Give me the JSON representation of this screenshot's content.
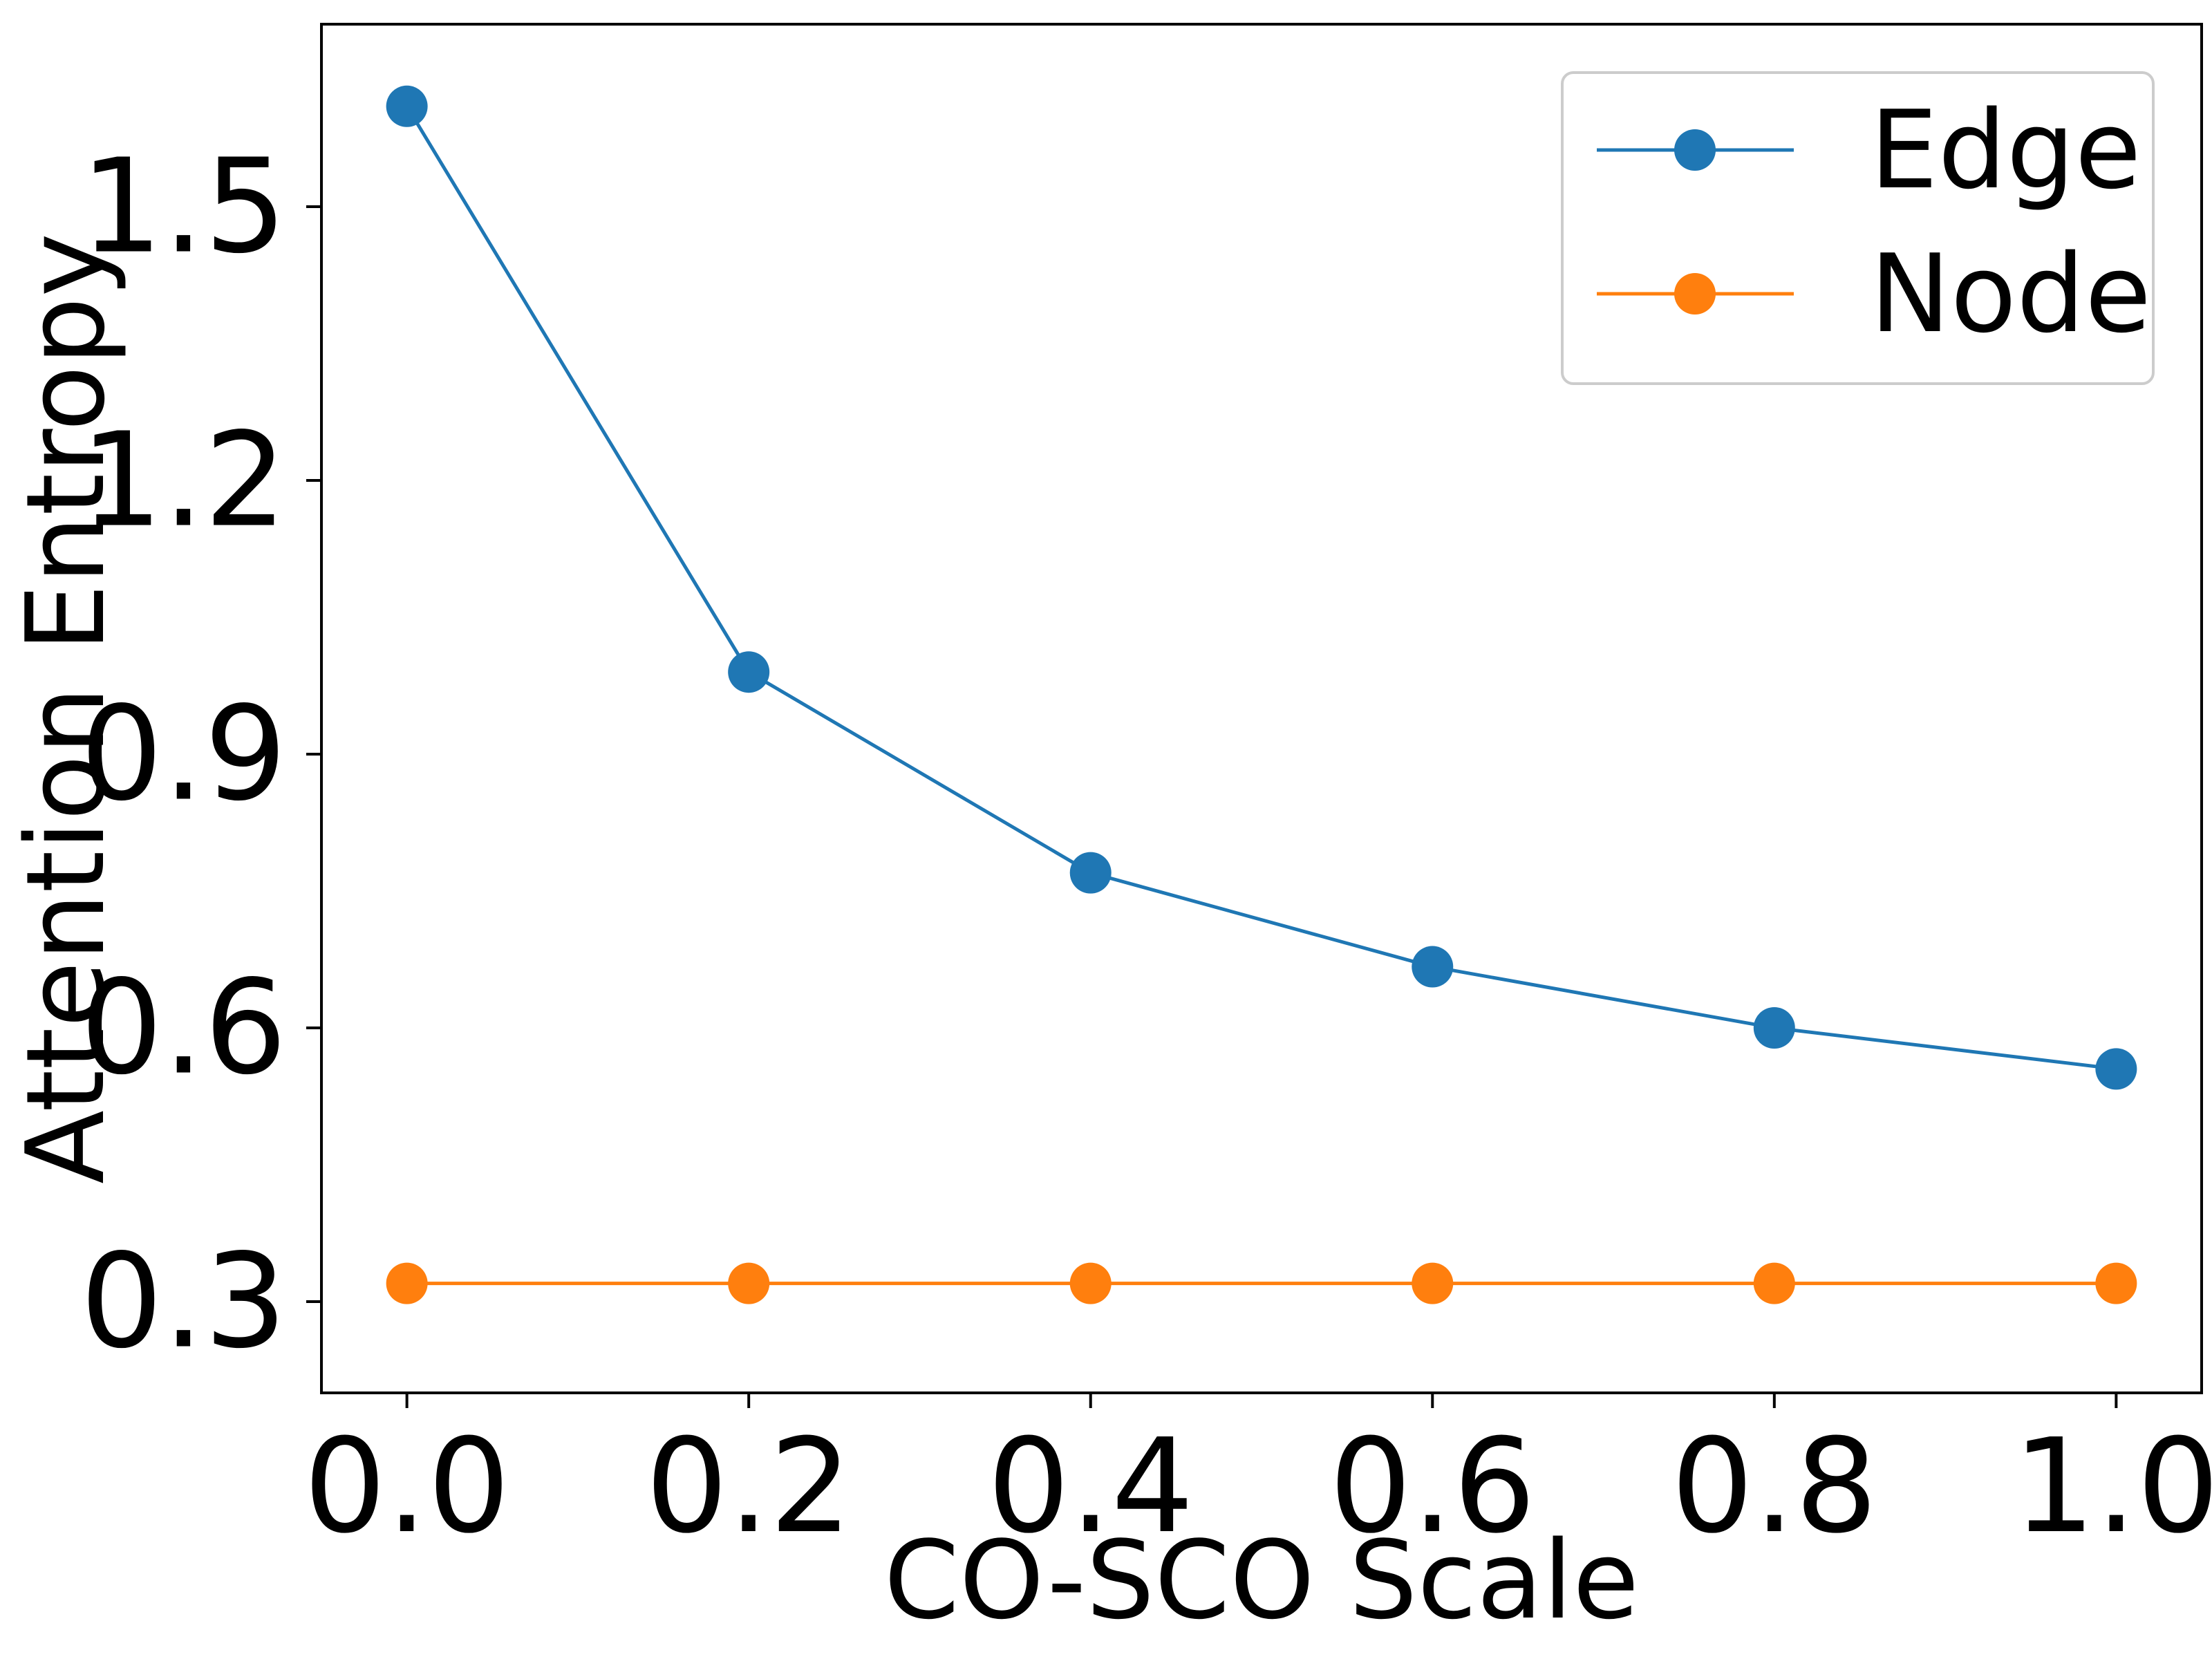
{
  "chart_data": {
    "type": "line",
    "title": "",
    "xlabel": "CO-SCO Scale",
    "ylabel": "Attention Entropy",
    "x": [
      0.0,
      0.2,
      0.4,
      0.6,
      0.8,
      1.0
    ],
    "x_ticks": [
      "0.0",
      "0.2",
      "0.4",
      "0.6",
      "0.8",
      "1.0"
    ],
    "y_ticks": [
      {
        "value": 0.3,
        "label": "0.3"
      },
      {
        "value": 0.6,
        "label": "0.6"
      },
      {
        "value": 0.9,
        "label": "0.9"
      },
      {
        "value": 1.2,
        "label": "1.2"
      },
      {
        "value": 1.5,
        "label": "1.5"
      }
    ],
    "xlim": [
      -0.05,
      1.05
    ],
    "ylim": [
      0.2,
      1.7
    ],
    "grid": false,
    "legend_position": "top-right",
    "series": [
      {
        "name": "Edge",
        "color": "#1f77b4",
        "values": [
          1.61,
          0.99,
          0.77,
          0.667,
          0.6,
          0.555
        ]
      },
      {
        "name": "Node",
        "color": "#ff7f0e",
        "values": [
          0.32,
          0.32,
          0.32,
          0.32,
          0.32,
          0.32
        ]
      }
    ]
  }
}
